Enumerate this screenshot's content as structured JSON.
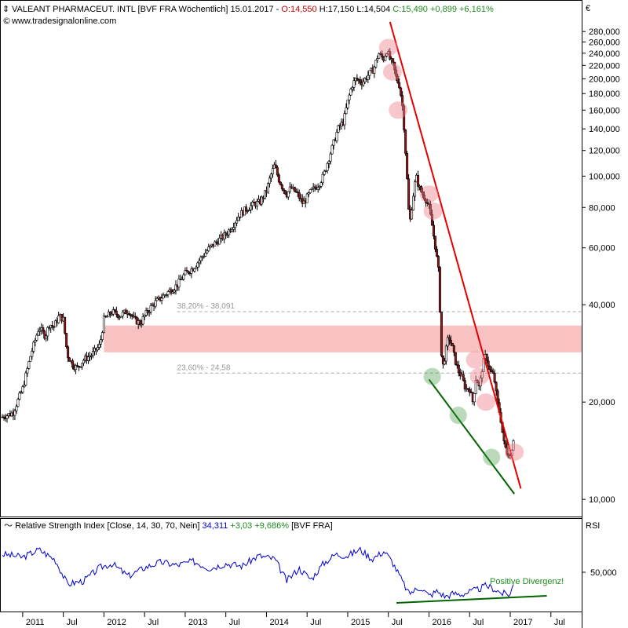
{
  "header": {
    "pin_icon": "pin-icon",
    "name": "VALEANT PHARMACEUT. INTL [BVF FRA  Wöchentlich] 15.01.2017 - ",
    "open": "O:14,550",
    "hl": " H:17,150  L:14,504 ",
    "close_change": "C:15,490 +0,899 +6,161%",
    "website_icon": "copyright-icon",
    "website": "www.tradesignalonline.com"
  },
  "colors": {
    "up": "#1e8c1e",
    "down": "#cc0000",
    "candle_down": "#8b1a1a",
    "resistance": "#e60000",
    "support": "#006400",
    "zone": "#f9c2c2",
    "rsi": "#0000cc"
  },
  "price_axis": {
    "currency": "€",
    "ticks": [
      "280,000",
      "260,000",
      "240,000",
      "220,000",
      "200,000",
      "180,000",
      "160,000",
      "140,000",
      "120,000",
      "100,000",
      "80,000",
      "60,000",
      "40,000",
      "20,000",
      "10,000"
    ]
  },
  "rsi_panel": {
    "title": "Relative Strength Index [Close, 14, 30, 70, Nein] ",
    "value": "34,311",
    "change": " +3,03 +9,686% ",
    "source": "[BVF FRA]",
    "axis_label": "RSI",
    "tick": "50,000"
  },
  "x_axis": {
    "labels": [
      "2011",
      "Jul",
      "2012",
      "Jul",
      "2013",
      "Jul",
      "2014",
      "Jul",
      "2015",
      "Jul",
      "2016",
      "Jul",
      "2017",
      "Jul"
    ]
  },
  "fib_levels": [
    {
      "label": "38,20% - 38,091",
      "value": 38.091
    },
    {
      "label": "23,60% - 24,58",
      "value": 24.58
    }
  ],
  "annotations": {
    "divergence": "Positive Divergenz!"
  },
  "chart_data": {
    "type": "candlestick",
    "title": "VALEANT PHARMACEUT. INTL [BVF FRA  Wöchentlich] 15.01.2017",
    "x_unit": "year",
    "y_scale": "log",
    "ylim": [
      9,
      310
    ],
    "grid": false,
    "price_path": [
      [
        2010.75,
        18
      ],
      [
        2010.88,
        18.5
      ],
      [
        2011.0,
        22
      ],
      [
        2011.1,
        28
      ],
      [
        2011.2,
        34
      ],
      [
        2011.28,
        32
      ],
      [
        2011.33,
        35
      ],
      [
        2011.38,
        34
      ],
      [
        2011.45,
        37
      ],
      [
        2011.5,
        36
      ],
      [
        2011.55,
        28
      ],
      [
        2011.62,
        26
      ],
      [
        2011.67,
        25.5
      ],
      [
        2011.75,
        27
      ],
      [
        2011.85,
        28
      ],
      [
        2011.95,
        30
      ],
      [
        2012.0,
        36
      ],
      [
        2012.1,
        38
      ],
      [
        2012.2,
        37
      ],
      [
        2012.3,
        38.5
      ],
      [
        2012.37,
        36
      ],
      [
        2012.45,
        35
      ],
      [
        2012.5,
        37
      ],
      [
        2012.6,
        40
      ],
      [
        2012.7,
        42
      ],
      [
        2012.8,
        44
      ],
      [
        2012.9,
        46
      ],
      [
        2013.0,
        50
      ],
      [
        2013.1,
        52
      ],
      [
        2013.2,
        56
      ],
      [
        2013.3,
        60
      ],
      [
        2013.4,
        63
      ],
      [
        2013.5,
        66
      ],
      [
        2013.58,
        70
      ],
      [
        2013.65,
        75
      ],
      [
        2013.72,
        78
      ],
      [
        2013.78,
        80
      ],
      [
        2013.85,
        82
      ],
      [
        2013.92,
        83
      ],
      [
        2014.0,
        90
      ],
      [
        2014.05,
        100
      ],
      [
        2014.1,
        108
      ],
      [
        2014.15,
        98
      ],
      [
        2014.2,
        92
      ],
      [
        2014.25,
        88
      ],
      [
        2014.3,
        92
      ],
      [
        2014.38,
        88
      ],
      [
        2014.45,
        82
      ],
      [
        2014.5,
        86
      ],
      [
        2014.55,
        90
      ],
      [
        2014.6,
        92
      ],
      [
        2014.65,
        95
      ],
      [
        2014.7,
        100
      ],
      [
        2014.75,
        110
      ],
      [
        2014.82,
        125
      ],
      [
        2014.88,
        140
      ],
      [
        2014.95,
        148
      ],
      [
        2015.0,
        170
      ],
      [
        2015.05,
        190
      ],
      [
        2015.1,
        200
      ],
      [
        2015.18,
        195
      ],
      [
        2015.25,
        205
      ],
      [
        2015.32,
        215
      ],
      [
        2015.38,
        240
      ],
      [
        2015.44,
        230
      ],
      [
        2015.48,
        245
      ],
      [
        2015.52,
        230
      ],
      [
        2015.56,
        220
      ],
      [
        2015.6,
        200
      ],
      [
        2015.64,
        190
      ],
      [
        2015.68,
        160
      ],
      [
        2015.72,
        110
      ],
      [
        2015.76,
        70
      ],
      [
        2015.8,
        85
      ],
      [
        2015.84,
        100
      ],
      [
        2015.88,
        92
      ],
      [
        2015.92,
        88
      ],
      [
        2015.96,
        85
      ],
      [
        2016.0,
        80
      ],
      [
        2016.04,
        70
      ],
      [
        2016.08,
        60
      ],
      [
        2016.12,
        50
      ],
      [
        2016.16,
        25
      ],
      [
        2016.2,
        28
      ],
      [
        2016.24,
        32
      ],
      [
        2016.28,
        30
      ],
      [
        2016.32,
        27
      ],
      [
        2016.36,
        25
      ],
      [
        2016.4,
        24
      ],
      [
        2016.45,
        22
      ],
      [
        2016.5,
        22
      ],
      [
        2016.54,
        20
      ],
      [
        2016.58,
        24
      ],
      [
        2016.62,
        22
      ],
      [
        2016.66,
        26
      ],
      [
        2016.7,
        28
      ],
      [
        2016.75,
        25
      ],
      [
        2016.8,
        24
      ],
      [
        2016.84,
        20
      ],
      [
        2016.88,
        18
      ],
      [
        2016.92,
        15
      ],
      [
        2016.96,
        14
      ],
      [
        2017.0,
        13.6
      ],
      [
        2017.04,
        15.5
      ]
    ],
    "resistance_line": [
      [
        2015.52,
        300
      ],
      [
        2017.13,
        10.8
      ]
    ],
    "support_line": [
      [
        2016.0,
        23.5
      ],
      [
        2017.05,
        10.4
      ]
    ],
    "zone": {
      "from": 28.5,
      "to": 34.5,
      "x_start": 2012.0
    },
    "resistance_touches": [
      [
        2015.5,
        250
      ],
      [
        2015.55,
        210
      ],
      [
        2015.62,
        160
      ],
      [
        2016.0,
        88
      ],
      [
        2016.05,
        78
      ],
      [
        2016.57,
        27
      ],
      [
        2016.62,
        24
      ],
      [
        2016.7,
        20
      ],
      [
        2017.05,
        14
      ]
    ],
    "support_touches": [
      [
        2016.04,
        24
      ],
      [
        2016.36,
        18.2
      ],
      [
        2016.77,
        13.5
      ]
    ],
    "rsi": {
      "ylim": [
        0,
        100
      ],
      "reference": 50,
      "series": [
        [
          2010.75,
          72
        ],
        [
          2010.9,
          70
        ],
        [
          2011.0,
          68
        ],
        [
          2011.2,
          78
        ],
        [
          2011.4,
          65
        ],
        [
          2011.55,
          34
        ],
        [
          2011.75,
          38
        ],
        [
          2011.95,
          55
        ],
        [
          2012.1,
          60
        ],
        [
          2012.3,
          44
        ],
        [
          2012.5,
          55
        ],
        [
          2012.7,
          62
        ],
        [
          2012.9,
          58
        ],
        [
          2013.1,
          63
        ],
        [
          2013.3,
          54
        ],
        [
          2013.5,
          60
        ],
        [
          2013.7,
          57
        ],
        [
          2013.9,
          70
        ],
        [
          2014.1,
          66
        ],
        [
          2014.25,
          38
        ],
        [
          2014.4,
          54
        ],
        [
          2014.55,
          40
        ],
        [
          2014.7,
          60
        ],
        [
          2014.85,
          72
        ],
        [
          2015.0,
          70
        ],
        [
          2015.15,
          78
        ],
        [
          2015.3,
          66
        ],
        [
          2015.45,
          76
        ],
        [
          2015.55,
          62
        ],
        [
          2015.65,
          42
        ],
        [
          2015.75,
          22
        ],
        [
          2015.9,
          30
        ],
        [
          2016.0,
          19
        ],
        [
          2016.1,
          25
        ],
        [
          2016.2,
          18
        ],
        [
          2016.3,
          22
        ],
        [
          2016.4,
          21
        ],
        [
          2016.5,
          24
        ],
        [
          2016.6,
          27
        ],
        [
          2016.7,
          32
        ],
        [
          2016.8,
          28
        ],
        [
          2016.9,
          22
        ],
        [
          2017.0,
          21
        ],
        [
          2017.04,
          34.3
        ]
      ],
      "divergence_line": [
        [
          2015.6,
          10
        ],
        [
          2017.45,
          19
        ]
      ]
    }
  }
}
